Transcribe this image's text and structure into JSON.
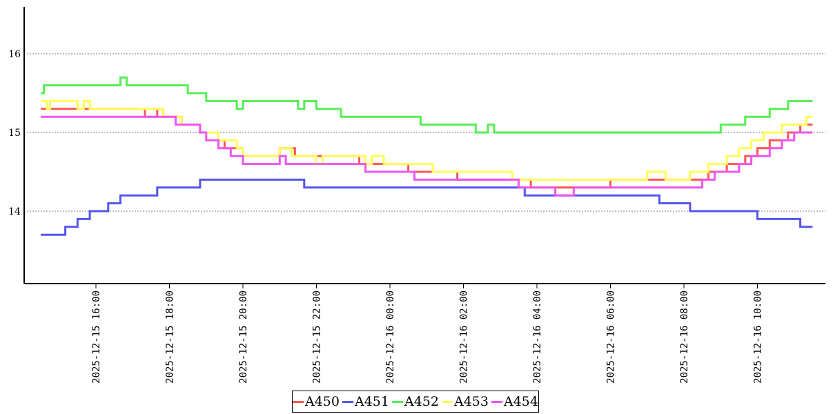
{
  "chart_data": {
    "type": "line",
    "x_start": "2025-12-15 14:30",
    "x_end": "2025-12-16 11:30",
    "ylim": [
      13.1,
      16.6
    ],
    "yticks": [
      14,
      15,
      16
    ],
    "xticks": [
      "2025-12-15 16:00",
      "2025-12-15 18:00",
      "2025-12-15 20:00",
      "2025-12-15 22:00",
      "2025-12-16 00:00",
      "2025-12-16 02:00",
      "2025-12-16 04:00",
      "2025-12-16 06:00",
      "2025-12-16 08:00",
      "2025-12-16 10:00"
    ],
    "grid": "horizontal dotted",
    "legend_position": "bottom",
    "series": [
      {
        "name": "A450",
        "color": "#ff5555",
        "points": [
          [
            "2025-12-15 14:30",
            15.3
          ],
          [
            "2025-12-15 17:20",
            15.2
          ],
          [
            "2025-12-15 17:40",
            15.3
          ],
          [
            "2025-12-15 17:50",
            15.2
          ],
          [
            "2025-12-15 18:20",
            15.1
          ],
          [
            "2025-12-15 18:50",
            15.0
          ],
          [
            "2025-12-15 19:20",
            14.9
          ],
          [
            "2025-12-15 19:30",
            14.8
          ],
          [
            "2025-12-15 20:00",
            14.7
          ],
          [
            "2025-12-15 21:00",
            14.8
          ],
          [
            "2025-12-15 21:25",
            14.7
          ],
          [
            "2025-12-15 21:50",
            14.7
          ],
          [
            "2025-12-15 23:10",
            14.6
          ],
          [
            "2025-12-16 00:30",
            14.5
          ],
          [
            "2025-12-16 01:50",
            14.4
          ],
          [
            "2025-12-16 03:50",
            14.3
          ],
          [
            "2025-12-16 06:00",
            14.4
          ],
          [
            "2025-12-16 07:00",
            14.4
          ],
          [
            "2025-12-16 08:40",
            14.5
          ],
          [
            "2025-12-16 09:10",
            14.6
          ],
          [
            "2025-12-16 09:40",
            14.7
          ],
          [
            "2025-12-16 10:00",
            14.8
          ],
          [
            "2025-12-16 10:20",
            14.9
          ],
          [
            "2025-12-16 10:50",
            15.0
          ],
          [
            "2025-12-16 11:10",
            15.1
          ],
          [
            "2025-12-16 11:30",
            15.1
          ]
        ]
      },
      {
        "name": "A451",
        "color": "#5555ee",
        "points": [
          [
            "2025-12-15 14:30",
            13.7
          ],
          [
            "2025-12-15 15:10",
            13.8
          ],
          [
            "2025-12-15 15:30",
            13.9
          ],
          [
            "2025-12-15 15:50",
            14.0
          ],
          [
            "2025-12-15 16:20",
            14.1
          ],
          [
            "2025-12-15 16:40",
            14.2
          ],
          [
            "2025-12-15 17:40",
            14.3
          ],
          [
            "2025-12-15 18:50",
            14.4
          ],
          [
            "2025-12-15 21:40",
            14.3
          ],
          [
            "2025-12-16 03:40",
            14.2
          ],
          [
            "2025-12-16 07:20",
            14.1
          ],
          [
            "2025-12-16 08:10",
            14.0
          ],
          [
            "2025-12-16 10:00",
            13.9
          ],
          [
            "2025-12-16 11:10",
            13.8
          ],
          [
            "2025-12-16 11:30",
            13.8
          ]
        ]
      },
      {
        "name": "A452",
        "color": "#55ee55",
        "points": [
          [
            "2025-12-15 14:30",
            15.5
          ],
          [
            "2025-12-15 14:35",
            15.6
          ],
          [
            "2025-12-15 16:40",
            15.7
          ],
          [
            "2025-12-15 16:50",
            15.6
          ],
          [
            "2025-12-15 18:30",
            15.5
          ],
          [
            "2025-12-15 19:00",
            15.4
          ],
          [
            "2025-12-15 19:50",
            15.3
          ],
          [
            "2025-12-15 20:00",
            15.4
          ],
          [
            "2025-12-15 21:30",
            15.3
          ],
          [
            "2025-12-15 21:40",
            15.4
          ],
          [
            "2025-12-15 22:00",
            15.3
          ],
          [
            "2025-12-15 22:40",
            15.2
          ],
          [
            "2025-12-16 00:50",
            15.1
          ],
          [
            "2025-12-16 02:20",
            15.0
          ],
          [
            "2025-12-16 02:40",
            15.1
          ],
          [
            "2025-12-16 02:50",
            15.0
          ],
          [
            "2025-12-16 09:00",
            15.1
          ],
          [
            "2025-12-16 09:40",
            15.2
          ],
          [
            "2025-12-16 10:20",
            15.3
          ],
          [
            "2025-12-16 10:50",
            15.4
          ],
          [
            "2025-12-16 11:30",
            15.4
          ]
        ]
      },
      {
        "name": "A453",
        "color": "#ffff55",
        "points": [
          [
            "2025-12-15 14:30",
            15.4
          ],
          [
            "2025-12-15 14:40",
            15.3
          ],
          [
            "2025-12-15 14:45",
            15.4
          ],
          [
            "2025-12-15 15:30",
            15.3
          ],
          [
            "2025-12-15 15:40",
            15.4
          ],
          [
            "2025-12-15 15:50",
            15.3
          ],
          [
            "2025-12-15 17:50",
            15.2
          ],
          [
            "2025-12-15 18:20",
            15.1
          ],
          [
            "2025-12-15 18:50",
            15.0
          ],
          [
            "2025-12-15 19:20",
            14.9
          ],
          [
            "2025-12-15 19:50",
            14.8
          ],
          [
            "2025-12-15 20:00",
            14.7
          ],
          [
            "2025-12-15 21:00",
            14.8
          ],
          [
            "2025-12-15 21:20",
            14.7
          ],
          [
            "2025-12-15 22:00",
            14.6
          ],
          [
            "2025-12-15 22:10",
            14.7
          ],
          [
            "2025-12-15 23:20",
            14.6
          ],
          [
            "2025-12-15 23:30",
            14.7
          ],
          [
            "2025-12-15 23:50",
            14.6
          ],
          [
            "2025-12-16 01:10",
            14.5
          ],
          [
            "2025-12-16 02:10",
            14.5
          ],
          [
            "2025-12-16 03:20",
            14.4
          ],
          [
            "2025-12-16 05:30",
            14.4
          ],
          [
            "2025-12-16 07:00",
            14.5
          ],
          [
            "2025-12-16 07:30",
            14.4
          ],
          [
            "2025-12-16 08:10",
            14.5
          ],
          [
            "2025-12-16 08:40",
            14.6
          ],
          [
            "2025-12-16 09:10",
            14.7
          ],
          [
            "2025-12-16 09:30",
            14.8
          ],
          [
            "2025-12-16 09:50",
            14.9
          ],
          [
            "2025-12-16 10:10",
            15.0
          ],
          [
            "2025-12-16 10:40",
            15.1
          ],
          [
            "2025-12-16 11:20",
            15.2
          ],
          [
            "2025-12-16 11:30",
            15.2
          ]
        ]
      },
      {
        "name": "A454",
        "color": "#ee55ee",
        "points": [
          [
            "2025-12-15 14:30",
            15.2
          ],
          [
            "2025-12-15 17:50",
            15.2
          ],
          [
            "2025-12-15 18:10",
            15.1
          ],
          [
            "2025-12-15 18:50",
            15.0
          ],
          [
            "2025-12-15 19:00",
            14.9
          ],
          [
            "2025-12-15 19:20",
            14.8
          ],
          [
            "2025-12-15 19:40",
            14.7
          ],
          [
            "2025-12-15 20:00",
            14.6
          ],
          [
            "2025-12-15 21:00",
            14.7
          ],
          [
            "2025-12-15 21:10",
            14.6
          ],
          [
            "2025-12-15 23:20",
            14.5
          ],
          [
            "2025-12-16 00:40",
            14.4
          ],
          [
            "2025-12-16 03:30",
            14.3
          ],
          [
            "2025-12-16 04:30",
            14.2
          ],
          [
            "2025-12-16 05:00",
            14.3
          ],
          [
            "2025-12-16 08:30",
            14.4
          ],
          [
            "2025-12-16 08:50",
            14.5
          ],
          [
            "2025-12-16 09:30",
            14.6
          ],
          [
            "2025-12-16 09:50",
            14.7
          ],
          [
            "2025-12-16 10:20",
            14.8
          ],
          [
            "2025-12-16 10:40",
            14.9
          ],
          [
            "2025-12-16 11:00",
            15.0
          ],
          [
            "2025-12-16 11:30",
            15.0
          ]
        ]
      }
    ]
  }
}
